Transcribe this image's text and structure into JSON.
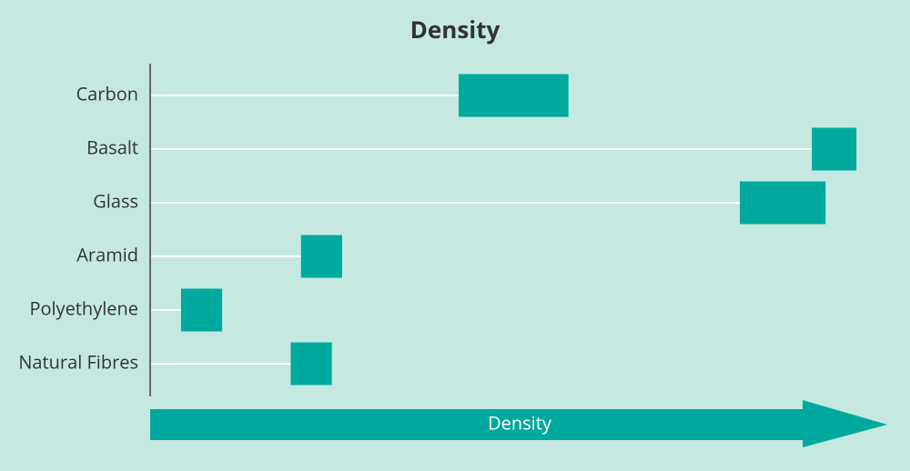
{
  "chart_data": {
    "type": "range-bar",
    "title": "Density",
    "xlabel": "Density",
    "categories": [
      "Carbon",
      "Basalt",
      "Glass",
      "Aramid",
      "Polyethylene",
      "Natural Fibres"
    ],
    "values": [
      [
        1.75,
        2.07
      ],
      [
        2.78,
        2.91
      ],
      [
        2.57,
        2.82
      ],
      [
        1.29,
        1.41
      ],
      [
        0.94,
        1.06
      ],
      [
        1.26,
        1.38
      ]
    ],
    "xlim": [
      0.85,
      3.0
    ],
    "color": "#00a99d",
    "grid": true
  }
}
